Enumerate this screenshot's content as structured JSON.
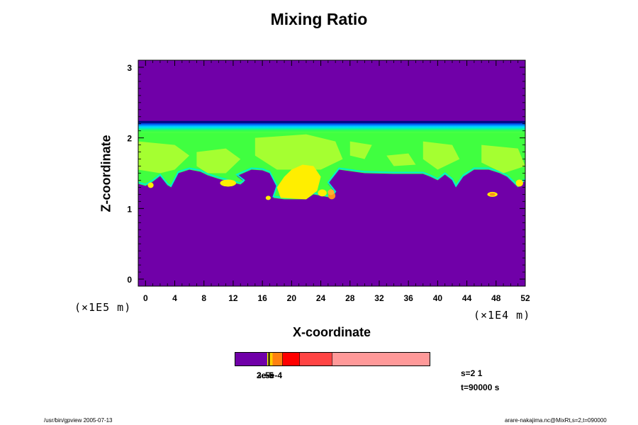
{
  "title": "Mixing Ratio",
  "colors": {
    "background_field": "#7000a8",
    "band_dark_blue": "#0020d0",
    "band_blue": "#0090ff",
    "band_cyan": "#00f0d0",
    "band_green": "#40ff40",
    "band_yellowgreen": "#b0ff30",
    "band_yellow": "#ffee00",
    "band_orange": "#ff9020",
    "colorbar_purple": "#7000a8",
    "colorbar_orange": "#ff8010",
    "colorbar_red": "#ff0000",
    "colorbar_lightred": "#ff4444",
    "colorbar_pink": "#ff9999"
  },
  "chart_data": {
    "type": "heatmap",
    "title": "Mixing Ratio",
    "xlabel": "X-coordinate",
    "ylabel": "Z-coordinate",
    "x_unit": "(×1E4 m)",
    "y_unit": "(×1E5 m)",
    "xlim": [
      -1,
      52
    ],
    "ylim": [
      -0.1,
      3.1
    ],
    "x_ticks": [
      0,
      4,
      8,
      12,
      16,
      20,
      24,
      28,
      32,
      36,
      40,
      44,
      48,
      52
    ],
    "y_ticks": [
      0,
      1,
      2,
      3
    ],
    "cloud_layer": {
      "top_z": 2.2,
      "base_z_typical": 1.5,
      "lowest_z": 1.13
    },
    "features": [
      {
        "name": "central cell",
        "x_range": [
          17,
          25.5
        ],
        "z_range": [
          1.13,
          2.0
        ]
      },
      {
        "name": "left cell",
        "x_range": [
          10,
          13.5
        ],
        "z_range": [
          1.3,
          1.6
        ]
      },
      {
        "name": "right blob",
        "x": 47.5,
        "z": 1.2
      }
    ],
    "colorbar_labels": [
      "2e-5",
      "3e-5",
      "5e-4"
    ]
  },
  "colorbar": {
    "labels": [
      "2e-5",
      "3e-5",
      "5e-4"
    ]
  },
  "info": {
    "s_label": "s=2 1",
    "t_label": "t=90000 s"
  },
  "footer": {
    "left": "/usr/bin/gpview 2005-07-13",
    "right": "arare-nakajima.nc@MixRt,s=2,t=090000"
  }
}
